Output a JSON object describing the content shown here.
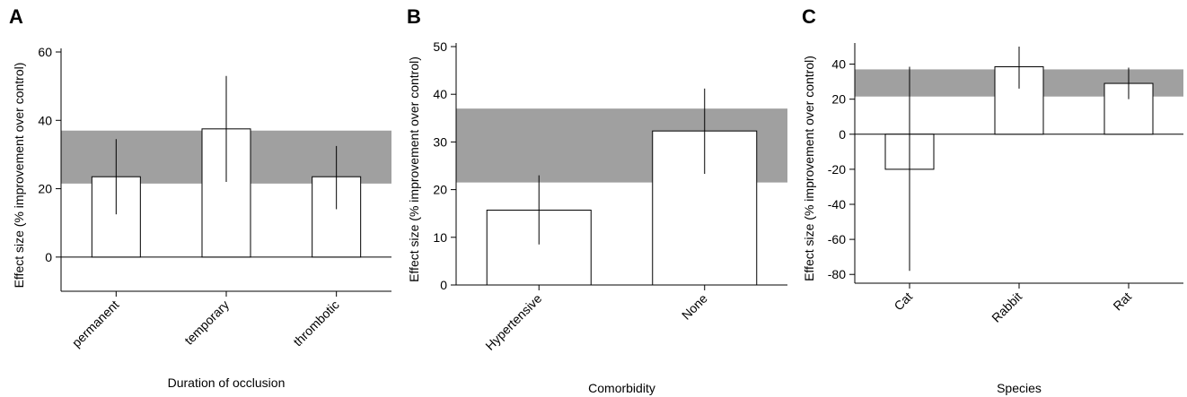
{
  "chart_data": [
    {
      "type": "bar",
      "panel_label": "A",
      "title": "",
      "xlabel": "Duration of occlusion",
      "ylabel": "Effect size (% improvement over control)",
      "categories": [
        "permanent",
        "temporary",
        "thrombotic"
      ],
      "values": [
        23.5,
        37.5,
        23.5
      ],
      "error_low": [
        12.5,
        22,
        14
      ],
      "error_high": [
        34.5,
        53,
        32.5
      ],
      "band": [
        21.5,
        37
      ],
      "ylim": [
        -10,
        60
      ],
      "yticks": [
        0,
        20,
        40,
        60
      ],
      "grid": false
    },
    {
      "type": "bar",
      "panel_label": "B",
      "title": "",
      "xlabel": "Comorbidity",
      "ylabel": "Effect size (% improvement over control)",
      "categories": [
        "Hypertensive",
        "None"
      ],
      "values": [
        15.7,
        32.3
      ],
      "error_low": [
        8.5,
        23.3
      ],
      "error_high": [
        23,
        41.2
      ],
      "band": [
        21.5,
        37
      ],
      "ylim": [
        0,
        50
      ],
      "yticks": [
        0,
        10,
        20,
        30,
        40,
        50
      ],
      "grid": false
    },
    {
      "type": "bar",
      "panel_label": "C",
      "title": "",
      "xlabel": "Species",
      "ylabel": "Effect size (% improvement over control)",
      "categories": [
        "Cat",
        "Rabbit",
        "Rat"
      ],
      "values": [
        -20,
        38.5,
        29
      ],
      "error_low": [
        -78,
        26,
        20
      ],
      "error_high": [
        38.5,
        50,
        38
      ],
      "band": [
        21.5,
        37
      ],
      "ylim": [
        -85,
        50
      ],
      "yticks": [
        -80,
        -60,
        -40,
        -20,
        0,
        20,
        40
      ],
      "grid": false
    }
  ]
}
